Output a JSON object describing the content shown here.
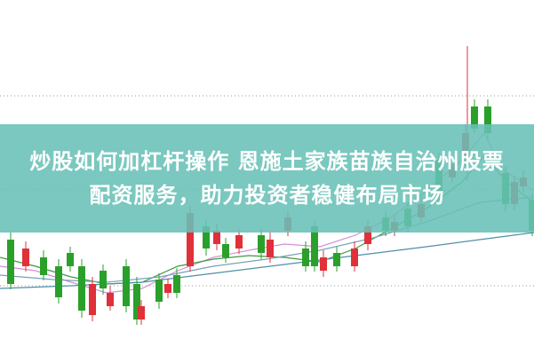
{
  "title_lines": [
    "炒股如何加杠杆操作 恩施土家族苗族自治州股票",
    "配资服务，助力投资者稳健布局市场"
  ]
}
